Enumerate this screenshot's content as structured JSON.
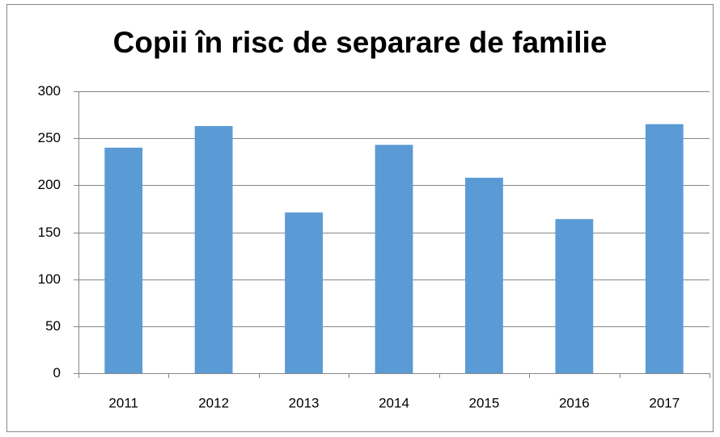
{
  "chart_data": {
    "type": "bar",
    "title": "Copii în risc de separare de familie",
    "categories": [
      "2011",
      "2012",
      "2013",
      "2014",
      "2015",
      "2016",
      "2017"
    ],
    "values": [
      240,
      263,
      171,
      243,
      208,
      164,
      265
    ],
    "color": "#5b9bd5",
    "ylim": [
      0,
      300
    ],
    "yticks": [
      0,
      50,
      100,
      150,
      200,
      250,
      300
    ],
    "grid": true
  }
}
